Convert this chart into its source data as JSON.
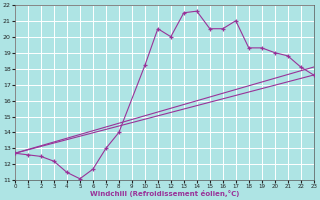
{
  "xlabel": "Windchill (Refroidissement éolien,°C)",
  "bg_color": "#aee4e4",
  "line_color": "#993399",
  "grid_color": "#ffffff",
  "xmin": 0,
  "xmax": 23,
  "ymin": 11,
  "ymax": 22,
  "line1_x": [
    0,
    1,
    2,
    3,
    4,
    5,
    6,
    7,
    8,
    10,
    11,
    12,
    13,
    14,
    15,
    16,
    17,
    18,
    19,
    20,
    21,
    22,
    23
  ],
  "line1_y": [
    12.7,
    12.6,
    12.5,
    12.2,
    11.5,
    11.1,
    11.7,
    13.0,
    14.0,
    18.2,
    20.5,
    20.0,
    21.5,
    21.6,
    20.5,
    20.5,
    21.0,
    19.3,
    19.3,
    19.0,
    18.8,
    18.1,
    17.6
  ],
  "line2_x": [
    0,
    23
  ],
  "line2_y": [
    12.7,
    18.1
  ],
  "line3_x": [
    0,
    23
  ],
  "line3_y": [
    12.7,
    17.6
  ],
  "xticks": [
    0,
    1,
    2,
    3,
    4,
    5,
    6,
    7,
    8,
    9,
    10,
    11,
    12,
    13,
    14,
    15,
    16,
    17,
    18,
    19,
    20,
    21,
    22,
    23
  ],
  "yticks": [
    11,
    12,
    13,
    14,
    15,
    16,
    17,
    18,
    19,
    20,
    21,
    22
  ]
}
